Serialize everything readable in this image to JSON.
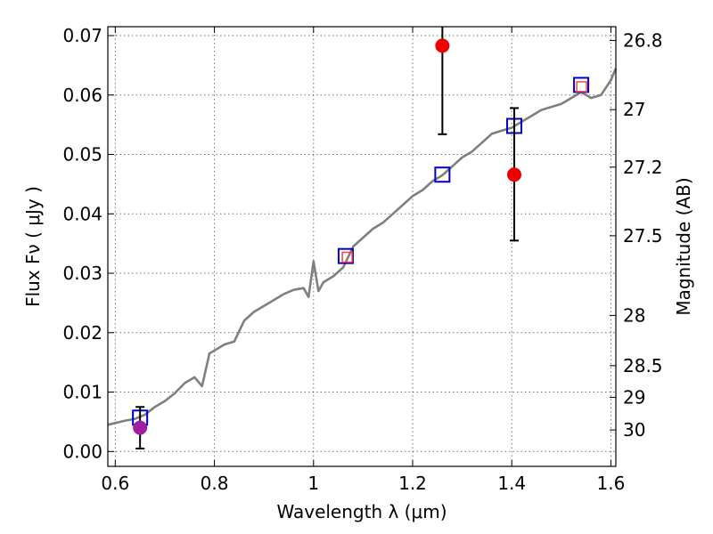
{
  "chart_data": {
    "type": "scatter",
    "title": "",
    "xlabel": "Wavelength  λ (μm)",
    "ylabel": "Flux  Fν  ( μJy )",
    "ylabel_right": "Magnitude (AB)",
    "xlim": [
      0.585,
      1.61
    ],
    "ylim": [
      -0.0025,
      0.0715
    ],
    "grid": true,
    "x_ticks": [
      {
        "value": 0.6,
        "label": "0.6"
      },
      {
        "value": 0.8,
        "label": "0.8"
      },
      {
        "value": 1.0,
        "label": "1"
      },
      {
        "value": 1.2,
        "label": "1.2"
      },
      {
        "value": 1.4,
        "label": "1.4"
      },
      {
        "value": 1.6,
        "label": "1.6"
      }
    ],
    "y_ticks": [
      {
        "value": 0.0,
        "label": "0.00"
      },
      {
        "value": 0.01,
        "label": "0.01"
      },
      {
        "value": 0.02,
        "label": "0.02"
      },
      {
        "value": 0.03,
        "label": "0.03"
      },
      {
        "value": 0.04,
        "label": "0.04"
      },
      {
        "value": 0.05,
        "label": "0.05"
      },
      {
        "value": 0.06,
        "label": "0.06"
      },
      {
        "value": 0.07,
        "label": "0.07"
      }
    ],
    "right_ticks": [
      {
        "mag": 26.8,
        "label": "26.8"
      },
      {
        "mag": 27,
        "label": "27"
      },
      {
        "mag": 27.2,
        "label": "27.2"
      },
      {
        "mag": 27.5,
        "label": "27.5"
      },
      {
        "mag": 28,
        "label": "28"
      },
      {
        "mag": 28.5,
        "label": "28.5"
      },
      {
        "mag": 29,
        "label": "29"
      },
      {
        "mag": 30,
        "label": "30"
      }
    ],
    "series": [
      {
        "name": "model SED",
        "kind": "line",
        "color": "#7f7f7f",
        "x": [
          0.585,
          0.6,
          0.62,
          0.64,
          0.66,
          0.68,
          0.7,
          0.72,
          0.74,
          0.76,
          0.775,
          0.79,
          0.8,
          0.82,
          0.84,
          0.86,
          0.88,
          0.9,
          0.92,
          0.94,
          0.96,
          0.98,
          0.99,
          1.0,
          1.01,
          1.02,
          1.04,
          1.06,
          1.08,
          1.1,
          1.12,
          1.14,
          1.16,
          1.18,
          1.2,
          1.22,
          1.24,
          1.26,
          1.28,
          1.3,
          1.32,
          1.34,
          1.36,
          1.38,
          1.4,
          1.42,
          1.44,
          1.46,
          1.48,
          1.5,
          1.52,
          1.54,
          1.56,
          1.58,
          1.6,
          1.61
        ],
        "y": [
          0.0045,
          0.0048,
          0.0052,
          0.0055,
          0.0062,
          0.0075,
          0.0085,
          0.0098,
          0.0115,
          0.0125,
          0.011,
          0.0165,
          0.017,
          0.018,
          0.0185,
          0.022,
          0.0235,
          0.0245,
          0.0255,
          0.0265,
          0.0272,
          0.0275,
          0.026,
          0.032,
          0.027,
          0.0285,
          0.0295,
          0.031,
          0.0345,
          0.036,
          0.0375,
          0.0385,
          0.04,
          0.0415,
          0.043,
          0.044,
          0.0455,
          0.0465,
          0.048,
          0.0495,
          0.0505,
          0.052,
          0.0535,
          0.054,
          0.0545,
          0.0555,
          0.0565,
          0.0575,
          0.058,
          0.0585,
          0.0595,
          0.0605,
          0.0595,
          0.06,
          0.0625,
          0.0645
        ]
      },
      {
        "name": "model photometry",
        "kind": "open-square",
        "color": "#0000cc",
        "x": [
          0.65,
          1.065,
          1.26,
          1.405,
          1.54
        ],
        "y": [
          0.0057,
          0.0329,
          0.0466,
          0.0548,
          0.0617
        ]
      },
      {
        "name": "observed photometry (red open square)",
        "kind": "small-open-square",
        "color": "#ff4040",
        "x": [
          1.068,
          1.541
        ],
        "y": [
          0.0327,
          0.0614
        ]
      },
      {
        "name": "observed flux",
        "kind": "filled-circle",
        "color": "#ee0000",
        "x": [
          1.26,
          1.405
        ],
        "y": [
          0.0683,
          0.0466
        ],
        "err_low": [
          0.0534,
          0.0355
        ],
        "err_high": [
          0.0715,
          0.0578
        ]
      },
      {
        "name": "observed flux (purple)",
        "kind": "filled-circle",
        "color": "#a020a0",
        "x": [
          0.65
        ],
        "y": [
          0.004
        ],
        "err_low": [
          0.0005
        ],
        "err_high": [
          0.0075
        ]
      }
    ]
  }
}
